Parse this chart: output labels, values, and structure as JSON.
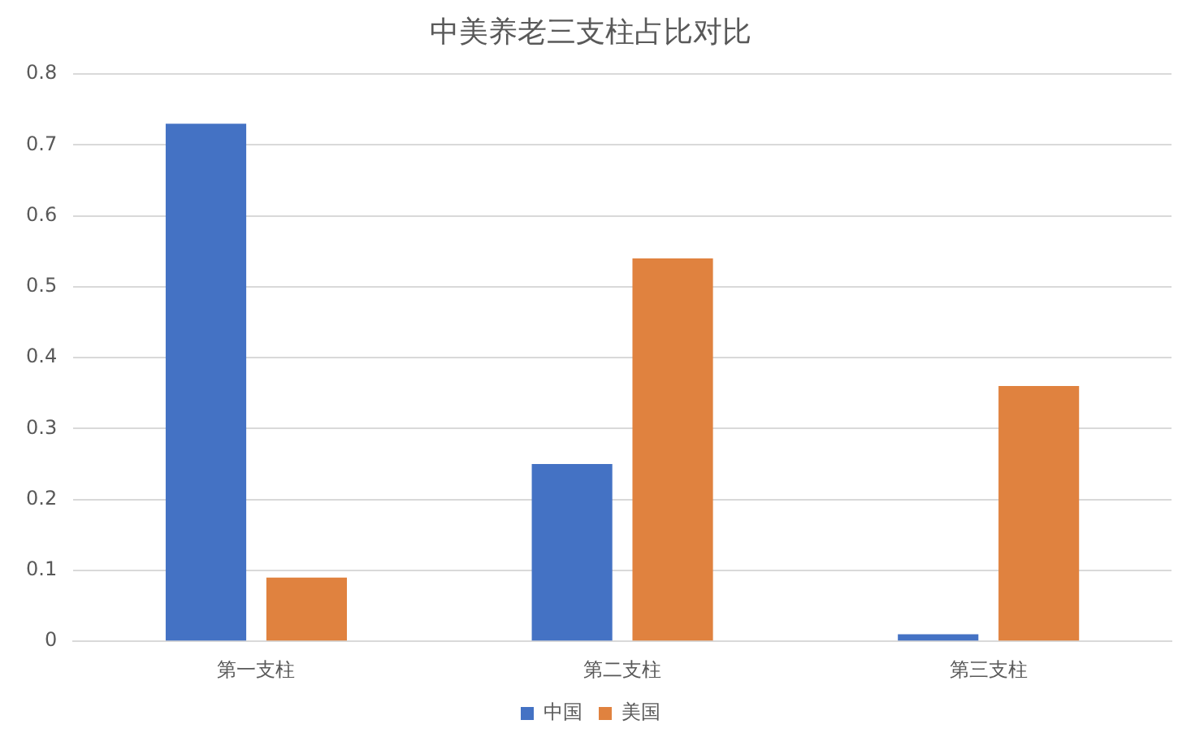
{
  "chart_data": {
    "type": "bar",
    "title": "中美养老三支柱占比对比",
    "categories": [
      "第一支柱",
      "第二支柱",
      "第三支柱"
    ],
    "series": [
      {
        "name": "中国",
        "color": "#4472c4",
        "values": [
          0.73,
          0.25,
          0.01
        ]
      },
      {
        "name": "美国",
        "color": "#e0823f",
        "values": [
          0.09,
          0.54,
          0.36
        ]
      }
    ],
    "ylim": [
      0,
      0.8
    ],
    "yticks": [
      0,
      0.1,
      0.2,
      0.3,
      0.4,
      0.5,
      0.6,
      0.7,
      0.8
    ],
    "grid": "y",
    "legend": "bottom"
  }
}
